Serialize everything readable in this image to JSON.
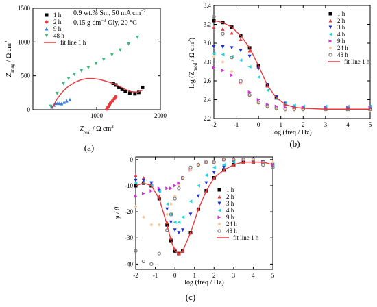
{
  "chart_data": [
    {
      "panel_label": "(a)",
      "type": "scatter",
      "xlabel_main": "Z",
      "xlabel_sub": "real",
      "xlabel_unit": " / Ω cm",
      "xlabel_sup": "2",
      "ylabel_main": "Z",
      "ylabel_sub": "imag",
      "ylabel_unit": " / Ω cm",
      "ylabel_sup": "2",
      "xlim": [
        0,
        2000
      ],
      "ylim": [
        0,
        1500
      ],
      "xticks": [
        "1000",
        "2000"
      ],
      "yticks": [
        "0",
        "500",
        "1000",
        "1500"
      ],
      "annotation": [
        "0.9 wt.% Sm, 50 mA cm",
        "−2",
        "0.15 g dm",
        "−3",
        " Gly, 20 °C"
      ],
      "legend_position": "top-left",
      "series": [
        {
          "name": "1 h",
          "marker": "square",
          "color": "#000000",
          "x": [
            1260,
            1300,
            1350,
            1400,
            1450,
            1520,
            1600,
            1660,
            1720
          ],
          "y": [
            390,
            365,
            330,
            300,
            270,
            245,
            235,
            255,
            330
          ]
        },
        {
          "name": "2 h",
          "marker": "circle",
          "color": "#e8393c",
          "x": [
            1160,
            1180,
            1200,
            1220,
            1250,
            1280,
            1300
          ],
          "y": [
            10,
            40,
            70,
            100,
            130,
            165,
            190
          ]
        },
        {
          "name": "9 h",
          "marker": "triangle-up",
          "color": "#3a7dd8",
          "x": [
            300,
            330,
            360,
            390,
            420,
            450,
            490,
            530,
            580
          ],
          "y": [
            40,
            70,
            95,
            100,
            95,
            90,
            110,
            130,
            150
          ]
        },
        {
          "name": "48 h",
          "marker": "triangle-down",
          "color": "#3fb979",
          "x": [
            280,
            380,
            480,
            560,
            650,
            760,
            870,
            990,
            1110,
            1240,
            1370,
            1500,
            1640
          ],
          "y": [
            50,
            240,
            385,
            460,
            520,
            575,
            620,
            680,
            740,
            810,
            880,
            970,
            1070
          ]
        },
        {
          "name": "fit line 1 h",
          "type": "line",
          "color": "#e8393c",
          "x": [
            300,
            380,
            460,
            550,
            650,
            750,
            850,
            950,
            1050,
            1150,
            1250,
            1350,
            1450,
            1550,
            1650,
            1720
          ],
          "y": [
            20,
            160,
            260,
            340,
            400,
            440,
            460,
            460,
            445,
            420,
            390,
            350,
            300,
            265,
            260,
            290
          ]
        }
      ]
    },
    {
      "panel_label": "(b)",
      "type": "scatter",
      "xlabel": "log (freq / Hz)",
      "ylabel_main": "log (Z",
      "ylabel_sub": "mod",
      "ylabel_unit": " / Ω cm",
      "ylabel_sup": "2",
      "ylabel_end": ")",
      "xlim": [
        -2,
        5
      ],
      "ylim": [
        2.2,
        3.4
      ],
      "xticks": [
        "-2",
        "-1",
        "0",
        "1",
        "2",
        "3",
        "4",
        "5"
      ],
      "yticks": [
        "2.2",
        "2.4",
        "2.6",
        "2.8",
        "3.0",
        "3.2",
        "3.4"
      ],
      "legend_position": "top-right",
      "series": [
        {
          "name": "1 h",
          "marker": "square",
          "color": "#000000",
          "x": [
            -2,
            -1.6,
            -1.2,
            -0.8,
            -0.4,
            0,
            0.4,
            0.8,
            1.2,
            1.6,
            2,
            3,
            4,
            5
          ],
          "y": [
            3.24,
            3.22,
            3.17,
            3.08,
            2.95,
            2.76,
            2.55,
            2.42,
            2.35,
            2.32,
            2.31,
            2.3,
            2.3,
            2.3
          ]
        },
        {
          "name": "2 h",
          "marker": "triangle-up",
          "color": "#e8393c",
          "x": [
            -2,
            -1.6,
            -1.2,
            -0.8,
            -0.4,
            0,
            0.4,
            0.8,
            1.2,
            1.6,
            2,
            3,
            4,
            5
          ],
          "y": [
            3.17,
            3.15,
            3.11,
            3.04,
            2.92,
            2.75,
            2.55,
            2.42,
            2.35,
            2.32,
            2.31,
            2.3,
            2.3,
            2.3
          ]
        },
        {
          "name": "3 h",
          "marker": "triangle-down",
          "color": "#1c2fd8",
          "x": [
            -2,
            -1.6,
            -1.2,
            -0.8,
            -0.4,
            0,
            0.4,
            0.8,
            1.2,
            1.6,
            2,
            3,
            4,
            5
          ],
          "y": [
            2.96,
            2.96,
            2.95,
            2.92,
            2.86,
            2.73,
            2.56,
            2.43,
            2.36,
            2.33,
            2.32,
            2.31,
            2.31,
            2.31
          ]
        },
        {
          "name": "4 h",
          "marker": "triangle-left",
          "color": "#1fd4de",
          "x": [
            -2,
            -1.6,
            -1.2,
            -0.8,
            -0.4,
            0,
            0.4,
            0.8,
            1.2,
            1.6,
            2,
            3,
            4,
            5
          ],
          "y": [
            2.89,
            2.88,
            2.86,
            2.82,
            2.75,
            2.64,
            2.5,
            2.41,
            2.36,
            2.34,
            2.33,
            2.33,
            2.33,
            2.33
          ]
        },
        {
          "name": "9 h",
          "marker": "triangle-right",
          "color": "#d82ad8",
          "x": [
            -2,
            -1.6,
            -1.2,
            -0.8,
            -0.4,
            0,
            0.4,
            0.8,
            1.2,
            1.6,
            2,
            3,
            4,
            5
          ],
          "y": [
            2.74,
            2.71,
            2.66,
            2.58,
            2.48,
            2.4,
            2.35,
            2.33,
            2.32,
            2.32,
            2.32,
            2.32,
            2.32,
            2.32
          ]
        },
        {
          "name": "24 h",
          "marker": "diamond",
          "color": "#f5c79a",
          "x": [
            -2,
            -1.6,
            -1.2,
            -0.8,
            -0.4,
            0,
            0.4,
            0.8,
            1.2,
            1.6,
            2,
            3,
            4,
            5
          ],
          "y": [
            2.86,
            2.8,
            2.7,
            2.57,
            2.44,
            2.36,
            2.32,
            2.3,
            2.29,
            2.29,
            2.29,
            2.29,
            2.29,
            2.29
          ]
        },
        {
          "name": "48 h",
          "marker": "circle-open",
          "color": "#777777",
          "x": [
            -2,
            -1.6,
            -1.2,
            -0.8,
            -0.4,
            0,
            0.4,
            0.8,
            1.2,
            1.6,
            2,
            3,
            4,
            5
          ],
          "y": [
            3.28,
            3.1,
            2.85,
            2.6,
            2.45,
            2.37,
            2.33,
            2.31,
            2.3,
            2.3,
            2.3,
            2.3,
            2.3,
            2.3
          ]
        },
        {
          "name": "fit line 1 h",
          "type": "line",
          "color": "#e8393c",
          "x": [
            -2,
            -1.6,
            -1.2,
            -0.8,
            -0.4,
            0,
            0.4,
            0.8,
            1.2,
            1.6,
            2,
            3,
            4,
            5
          ],
          "y": [
            3.24,
            3.22,
            3.17,
            3.08,
            2.95,
            2.76,
            2.55,
            2.42,
            2.35,
            2.32,
            2.31,
            2.3,
            2.3,
            2.3
          ]
        }
      ]
    },
    {
      "panel_label": "(c)",
      "type": "scatter",
      "xlabel": "log (freq / Hz)",
      "ylabel": "φ / 0",
      "xlim": [
        -2,
        5
      ],
      "ylim": [
        -42,
        1
      ],
      "xticks": [
        "-2",
        "-1",
        "0",
        "1",
        "2",
        "3",
        "4",
        "5"
      ],
      "yticks": [
        "0",
        "-10",
        "-20",
        "-30",
        "-40"
      ],
      "legend_position": "right",
      "series": [
        {
          "name": "1 h",
          "marker": "square",
          "color": "#000000",
          "x": [
            -2,
            -1.6,
            -1.2,
            -0.8,
            -0.4,
            -0.2,
            0,
            0.2,
            0.4,
            0.8,
            1.2,
            1.6,
            2,
            2.5,
            3,
            3.5,
            4,
            4.5,
            5
          ],
          "y": [
            -10,
            -9,
            -10,
            -15,
            -25,
            -31,
            -35,
            -36,
            -35,
            -28,
            -19,
            -12,
            -7,
            -4,
            -2,
            -1,
            -1,
            -1,
            -2
          ]
        },
        {
          "name": "2 h",
          "marker": "triangle-up",
          "color": "#e8393c",
          "x": [
            -2,
            -1.6,
            -1.2,
            -0.8,
            -0.4,
            -0.2,
            0,
            0.2,
            0.4,
            0.8,
            1.2,
            1.6,
            2,
            2.5,
            3,
            3.5,
            4,
            4.5,
            5
          ],
          "y": [
            -6,
            -7,
            -9,
            -14,
            -24,
            -30,
            -34,
            -36,
            -35,
            -28,
            -19,
            -12,
            -7,
            -4,
            -2,
            -1,
            -1,
            -1,
            -2
          ]
        },
        {
          "name": "3 h",
          "marker": "triangle-down",
          "color": "#1c2fd8",
          "x": [
            -2,
            -1.6,
            -1.2,
            -0.8,
            -0.4,
            -0.2,
            0,
            0.2,
            0.4,
            0.8,
            1.2,
            1.6,
            2,
            2.5,
            3,
            3.5,
            4,
            4.5,
            5
          ],
          "y": [
            -8,
            -8,
            -9,
            -12,
            -19,
            -24,
            -27,
            -28,
            -27,
            -21,
            -14,
            -9,
            -5,
            -3,
            -1,
            0,
            0,
            -1,
            -2
          ]
        },
        {
          "name": "4 h",
          "marker": "triangle-left",
          "color": "#1fd4de",
          "x": [
            -2,
            -1.6,
            -1.2,
            -0.8,
            -0.4,
            -0.2,
            0,
            0.2,
            0.4,
            0.8,
            1.2,
            1.6,
            2,
            2.5,
            3,
            3.5,
            4,
            4.5,
            5
          ],
          "y": [
            -9,
            -9,
            -10,
            -12,
            -17,
            -21,
            -24,
            -24,
            -22,
            -16,
            -10,
            -6,
            -3,
            -2,
            -1,
            0,
            0,
            -1,
            -2
          ]
        },
        {
          "name": "9 h",
          "marker": "triangle-right",
          "color": "#d82ad8",
          "x": [
            -2,
            -1.6,
            -1.2,
            -0.8,
            -0.4,
            -0.2,
            0,
            0.2,
            0.4,
            0.8,
            1.2,
            1.6,
            2,
            2.5,
            3,
            3.5,
            4,
            4.5,
            5
          ],
          "y": [
            -14,
            -13,
            -12,
            -11,
            -11,
            -11,
            -10,
            -9,
            -7,
            -4,
            -2,
            -1,
            -1,
            0,
            0,
            0,
            0,
            -1,
            -2
          ]
        },
        {
          "name": "24 h",
          "marker": "diamond",
          "color": "#f5c79a",
          "x": [
            -2,
            -1.6,
            -1.2,
            -0.8,
            -0.4,
            -0.2,
            0,
            0.2,
            0.4,
            0.8,
            1.2,
            1.6,
            2,
            2.5,
            3,
            3.5,
            4,
            4.5,
            5
          ],
          "y": [
            -18,
            -22,
            -25,
            -25,
            -21,
            -17,
            -14,
            -10,
            -7,
            -4,
            -2,
            -1,
            -1,
            0,
            0,
            0,
            0,
            -1,
            -1
          ]
        },
        {
          "name": "48 h",
          "marker": "circle-open",
          "color": "#777777",
          "x": [
            -2,
            -1.6,
            -1.2,
            -0.8,
            -0.4,
            -0.2,
            0,
            0.2,
            0.4,
            0.8,
            1.2,
            1.6,
            2,
            2.5,
            3,
            3.5,
            4,
            4.5,
            5
          ],
          "y": [
            -35,
            -39,
            -40,
            -36,
            -27,
            -21,
            -15,
            -11,
            -7,
            -3,
            -2,
            -1,
            -1,
            0,
            0,
            0,
            -1,
            -2,
            -3
          ]
        },
        {
          "name": "fit line 1 h",
          "type": "line",
          "color": "#e8393c",
          "x": [
            -2,
            -1.6,
            -1.2,
            -0.8,
            -0.4,
            -0.2,
            0,
            0.2,
            0.4,
            0.8,
            1.2,
            1.6,
            2,
            2.5,
            3,
            3.5,
            4,
            4.5,
            5
          ],
          "y": [
            -10,
            -9,
            -10,
            -15,
            -25,
            -31,
            -35,
            -36,
            -35,
            -28,
            -19,
            -12,
            -7,
            -4,
            -2,
            -1,
            -1,
            -1,
            -2
          ]
        }
      ]
    }
  ]
}
